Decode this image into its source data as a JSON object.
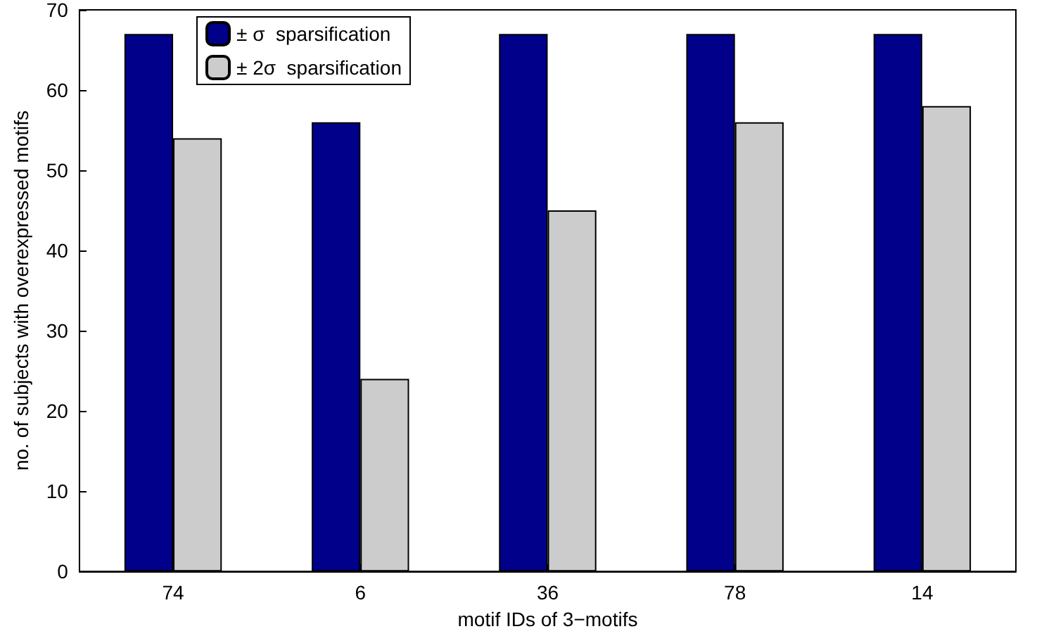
{
  "chart_data": {
    "type": "bar",
    "xlabel": "motif IDs of 3−motifs",
    "ylabel": "no. of subjects with overexpressed motifs",
    "categories": [
      "74",
      "6",
      "36",
      "78",
      "14"
    ],
    "series": [
      {
        "name": "± σ  sparsification",
        "color": "#00008b",
        "values": [
          67,
          56,
          67,
          67,
          67
        ]
      },
      {
        "name": "± 2σ  sparsification",
        "color": "#cccccc",
        "values": [
          54,
          24,
          45,
          56,
          58
        ]
      }
    ],
    "ylim": [
      0,
      70
    ],
    "yticks": [
      0,
      10,
      20,
      30,
      40,
      50,
      60,
      70
    ],
    "grid": false,
    "legend": "top left"
  }
}
